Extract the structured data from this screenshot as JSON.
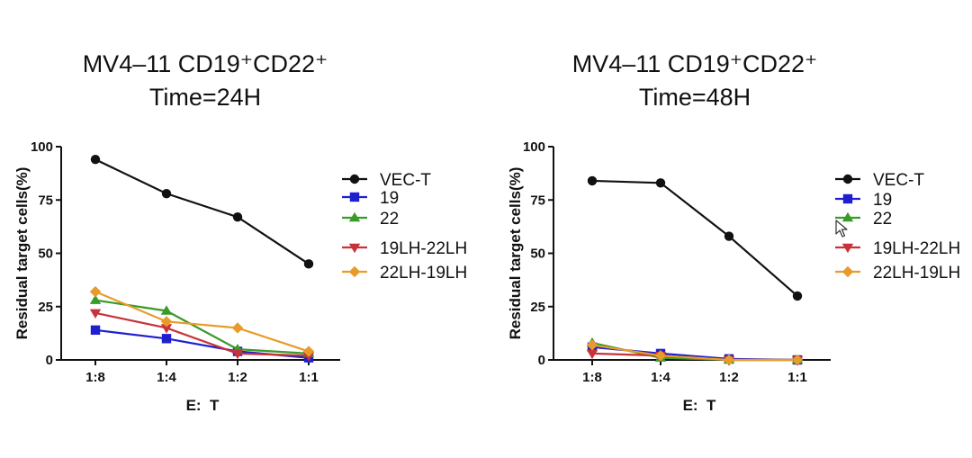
{
  "chart_data": [
    {
      "type": "line",
      "title": [
        "MV4–11 CD19⁺CD22⁺",
        "Time=24H"
      ],
      "xlabel": "E:  T",
      "ylabel": "Residual target cells(%)",
      "categories": [
        "1:8",
        "1:4",
        "1:2",
        "1:1"
      ],
      "ylim": [
        0,
        100
      ],
      "yticks": [
        0,
        25,
        50,
        75,
        100
      ],
      "series": [
        {
          "name": "VEC-T",
          "color": "#111111",
          "marker": "circle",
          "values": [
            94,
            78,
            67,
            45
          ]
        },
        {
          "name": "19",
          "color": "#1f1fd0",
          "marker": "square",
          "values": [
            14,
            10,
            4,
            1
          ]
        },
        {
          "name": "22",
          "color": "#3a9a2a",
          "marker": "triangle-up",
          "values": [
            28,
            23,
            5,
            3
          ]
        },
        {
          "name": "19LH-22LH",
          "color": "#c8323a",
          "marker": "triangle-down",
          "values": [
            22,
            15,
            3,
            2
          ]
        },
        {
          "name": "22LH-19LH",
          "color": "#e89b2a",
          "marker": "diamond",
          "values": [
            32,
            18,
            15,
            4
          ]
        }
      ]
    },
    {
      "type": "line",
      "title": [
        "MV4–11 CD19⁺CD22⁺",
        "Time=48H"
      ],
      "xlabel": "E:  T",
      "ylabel": "Residual target cells(%)",
      "categories": [
        "1:8",
        "1:4",
        "1:2",
        "1:1"
      ],
      "ylim": [
        0,
        100
      ],
      "yticks": [
        0,
        25,
        50,
        75,
        100
      ],
      "series": [
        {
          "name": "VEC-T",
          "color": "#111111",
          "marker": "circle",
          "values": [
            84,
            83,
            58,
            30
          ]
        },
        {
          "name": "19",
          "color": "#1f1fd0",
          "marker": "square",
          "values": [
            6,
            3,
            0.5,
            0
          ]
        },
        {
          "name": "22",
          "color": "#3a9a2a",
          "marker": "triangle-up",
          "values": [
            8,
            1,
            0,
            0
          ]
        },
        {
          "name": "19LH-22LH",
          "color": "#c8323a",
          "marker": "triangle-down",
          "values": [
            3,
            2,
            0,
            0
          ]
        },
        {
          "name": "22LH-19LH",
          "color": "#e89b2a",
          "marker": "diamond",
          "values": [
            7,
            2,
            0,
            0
          ]
        }
      ]
    }
  ]
}
